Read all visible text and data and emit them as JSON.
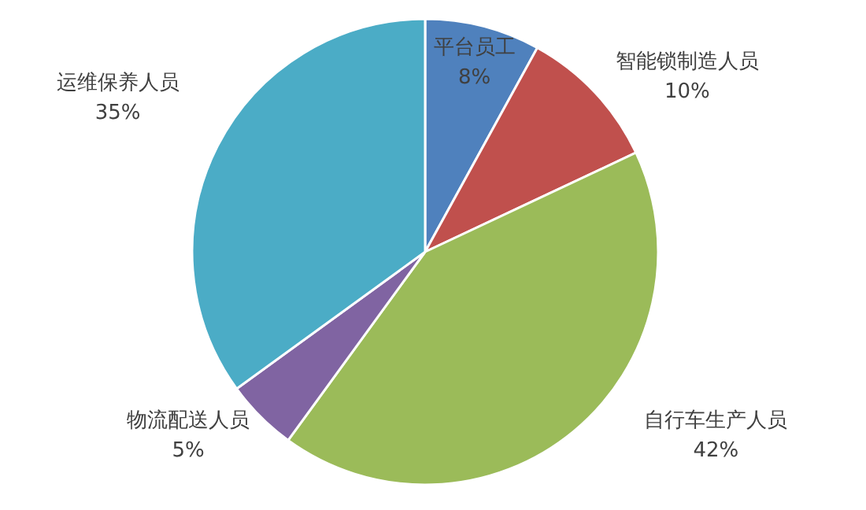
{
  "chart_data": {
    "type": "pie",
    "categories": [
      "平台员工",
      "智能锁制造人员",
      "自行车生产人员",
      "物流配送人员",
      "运维保养人员"
    ],
    "values": [
      8,
      10,
      42,
      5,
      35
    ],
    "colors": [
      "#4f81bd",
      "#c0504d",
      "#9bbb59",
      "#8064a2",
      "#4bacc6"
    ],
    "value_labels": [
      "8%",
      "10%",
      "42%",
      "5%",
      "35%"
    ]
  }
}
